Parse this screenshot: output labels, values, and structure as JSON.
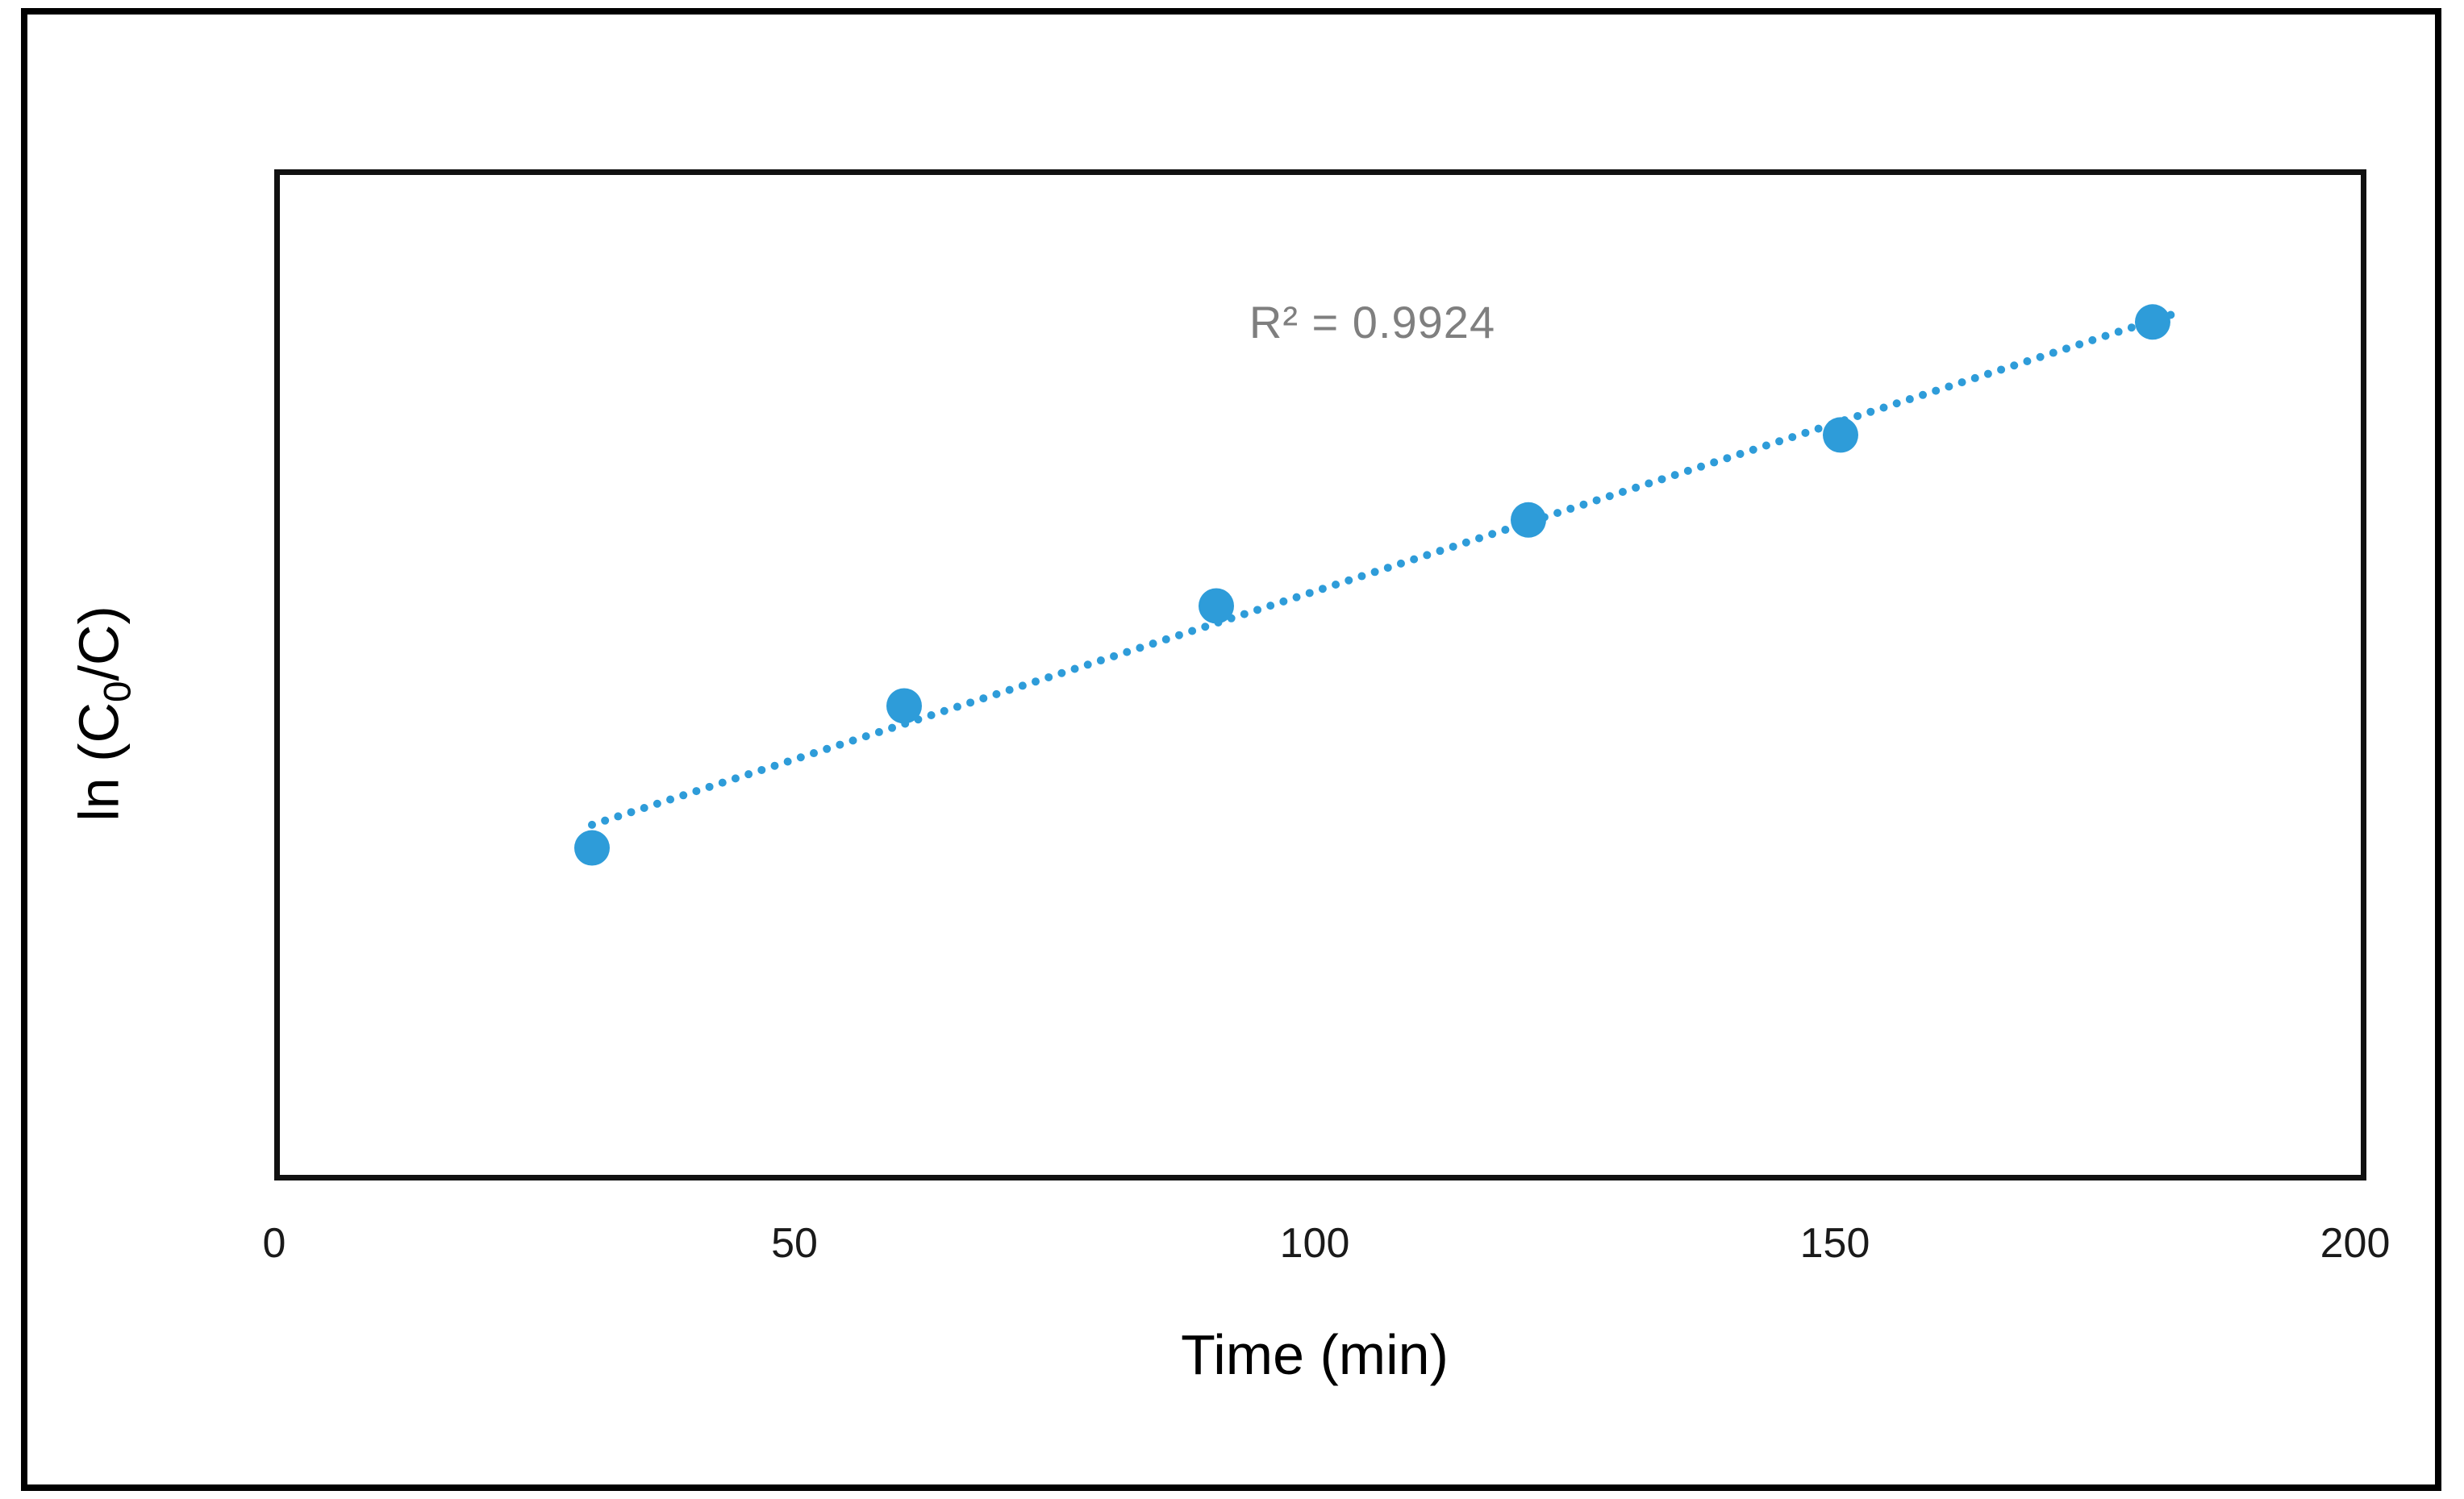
{
  "chart_data": {
    "type": "scatter",
    "title": "",
    "xlabel": "Time (min)",
    "ylabel": "ln (C0/C)",
    "ylabel_parts": {
      "pre": "ln (C",
      "sub": "0",
      "post": "/C)"
    },
    "x": [
      30,
      60,
      90,
      120,
      150,
      180
    ],
    "y_rel": [
      0.327,
      0.469,
      0.569,
      0.655,
      0.74,
      0.853
    ],
    "y_rel_units": "fraction of plot height (y-axis has no tick labels in the figure)",
    "xlim": [
      0,
      200
    ],
    "x_ticks": [
      0,
      50,
      100,
      150,
      200
    ],
    "y_ticks": [],
    "grid": false,
    "legend": "none",
    "annotation": "R² = 0.9924",
    "r_squared": 0.9924,
    "trendline_style": "dotted",
    "marker_color": "#2E9CD9",
    "line_color": "#2E9CD9",
    "annotation_color": "#7f7f7f",
    "axis_text_color": "#1a1a1a"
  }
}
